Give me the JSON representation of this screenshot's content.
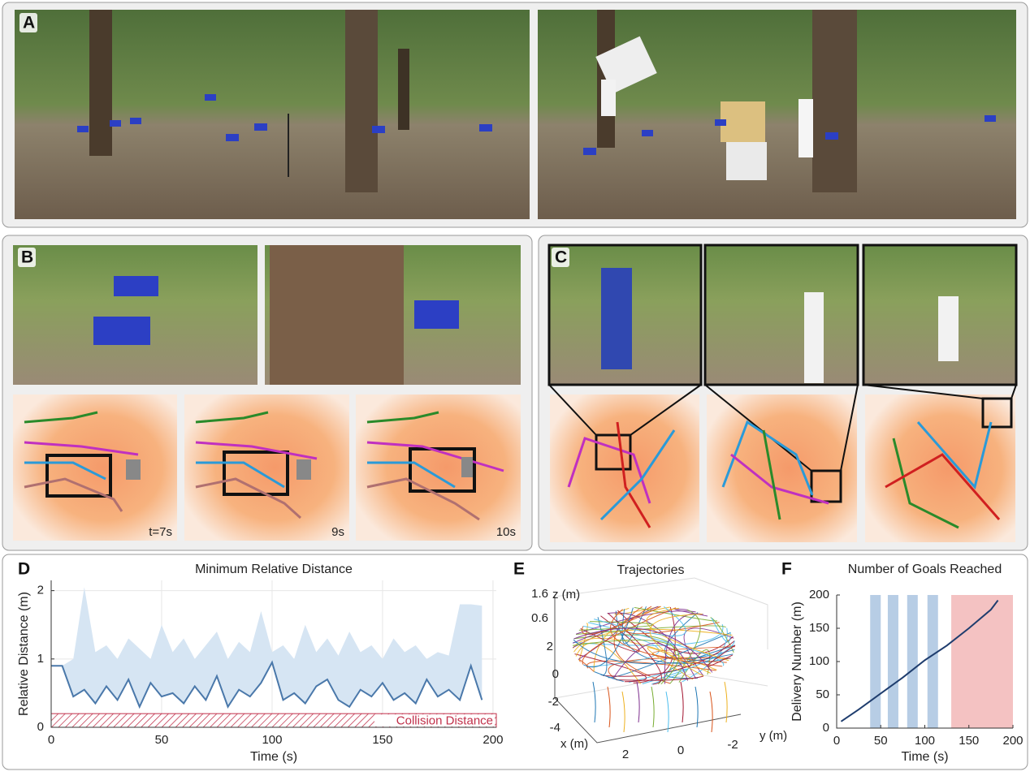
{
  "panel_labels": [
    "A",
    "B",
    "C",
    "D",
    "E",
    "F"
  ],
  "panel_b": {
    "time_labels": [
      "t=7s",
      "9s",
      "10s"
    ]
  },
  "chart_data": [
    {
      "type": "line",
      "title": "Minimum Relative Distance",
      "x_label": "Time (s)",
      "y_label": "Relative Distance (m)",
      "x": [
        0,
        5,
        10,
        15,
        20,
        25,
        30,
        35,
        40,
        45,
        50,
        55,
        60,
        65,
        70,
        75,
        80,
        85,
        90,
        95,
        100,
        105,
        110,
        115,
        120,
        125,
        130,
        135,
        140,
        145,
        150,
        155,
        160,
        165,
        170,
        175,
        180,
        185,
        190,
        195
      ],
      "values": [
        0.9,
        0.9,
        0.45,
        0.55,
        0.35,
        0.6,
        0.4,
        0.7,
        0.3,
        0.65,
        0.45,
        0.5,
        0.35,
        0.6,
        0.4,
        0.75,
        0.3,
        0.55,
        0.45,
        0.65,
        0.95,
        0.4,
        0.5,
        0.35,
        0.6,
        0.7,
        0.4,
        0.3,
        0.55,
        0.45,
        0.65,
        0.4,
        0.5,
        0.35,
        0.7,
        0.45,
        0.55,
        0.4,
        0.9,
        0.4
      ],
      "range_max": [
        0.9,
        0.9,
        1.0,
        2.05,
        1.1,
        1.2,
        1.0,
        1.3,
        1.15,
        1.0,
        1.5,
        1.1,
        1.3,
        1.0,
        1.2,
        1.4,
        1.0,
        1.25,
        1.1,
        1.7,
        1.1,
        1.2,
        1.0,
        1.5,
        1.1,
        1.3,
        1.05,
        1.4,
        1.1,
        1.2,
        1.0,
        1.3,
        1.1,
        1.2,
        1.0,
        1.1,
        1.05,
        1.8,
        1.8,
        1.78
      ],
      "color": "#4a78aa",
      "band_color": "#d6e5f3",
      "collision_distance": 0.2,
      "collision_label": "Collision Distance",
      "collision_color": "#c0304a",
      "xlim": [
        0,
        201.5
      ],
      "ylim": [
        0,
        2.15
      ],
      "xticks": [
        0,
        50,
        100,
        150,
        200
      ],
      "yticks": [
        0,
        1,
        2
      ],
      "grid": true
    },
    {
      "type": "line3d",
      "title": "Trajectories",
      "z_label": "z (m)",
      "x_label": "x (m)",
      "y_label": "y (m)",
      "zticks": [
        1.6,
        0.6
      ],
      "xticks": [
        2,
        0,
        -2,
        -4
      ],
      "yticks": [
        2,
        0,
        -2
      ]
    },
    {
      "type": "line",
      "title": "Number of Goals Reached",
      "x_label": "Time (s)",
      "y_label": "Delivery Number (m)",
      "x": [
        5,
        25,
        50,
        75,
        100,
        125,
        150,
        175,
        183
      ],
      "values": [
        10,
        28,
        52,
        76,
        102,
        124,
        150,
        178,
        192
      ],
      "color": "#1f3d6e",
      "highlight_spans": [
        [
          38,
          50
        ],
        [
          58,
          70
        ],
        [
          80,
          92
        ],
        [
          103,
          115
        ]
      ],
      "highlight_color": "#b7cde5",
      "end_span": [
        130,
        200
      ],
      "end_color": "#f4c2c2",
      "xlim": [
        0,
        200
      ],
      "ylim": [
        0,
        200
      ],
      "xticks": [
        0,
        50,
        100,
        150,
        200
      ],
      "yticks": [
        0,
        50,
        100,
        150,
        200
      ],
      "grid": false
    }
  ]
}
